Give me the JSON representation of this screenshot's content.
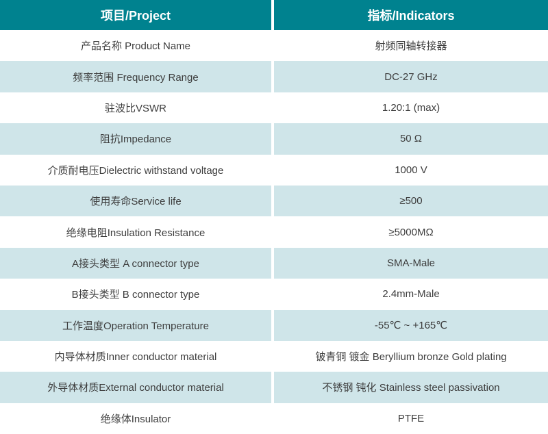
{
  "table": {
    "header": {
      "project": "项目/Project",
      "indicators": "指标/Indicators"
    },
    "rows": [
      {
        "project": "产品名称 Product Name",
        "indicator": "射频同轴转接器"
      },
      {
        "project": "频率范围 Frequency Range",
        "indicator": "DC-27 GHz"
      },
      {
        "project": "驻波比VSWR",
        "indicator": "1.20:1 (max)"
      },
      {
        "project": "阻抗Impedance",
        "indicator": "50 Ω"
      },
      {
        "project": "介质耐电压Dielectric withstand voltage",
        "indicator": "1000 V"
      },
      {
        "project": "使用寿命Service life",
        "indicator": "≥500"
      },
      {
        "project": "绝缘电阻Insulation Resistance",
        "indicator": "≥5000MΩ"
      },
      {
        "project": "A接头类型 A connector type",
        "indicator": "SMA-Male"
      },
      {
        "project": "B接头类型 B connector type",
        "indicator": "2.4mm-Male"
      },
      {
        "project": "工作温度Operation Temperature",
        "indicator": "-55℃ ~ +165℃"
      },
      {
        "project": "内导体材质Inner conductor material",
        "indicator": "铍青铜 镀金 Beryllium bronze Gold plating"
      },
      {
        "project": "外导体材质External conductor material",
        "indicator": "不锈钢 钝化 Stainless steel passivation"
      },
      {
        "project": "绝缘体Insulator",
        "indicator": "PTFE"
      }
    ],
    "colors": {
      "header_bg": "#00828f",
      "row_alt_bg": "#cfe5e9",
      "row_bg": "#ffffff",
      "text": "#3d3d3d",
      "header_text": "#ffffff"
    }
  }
}
